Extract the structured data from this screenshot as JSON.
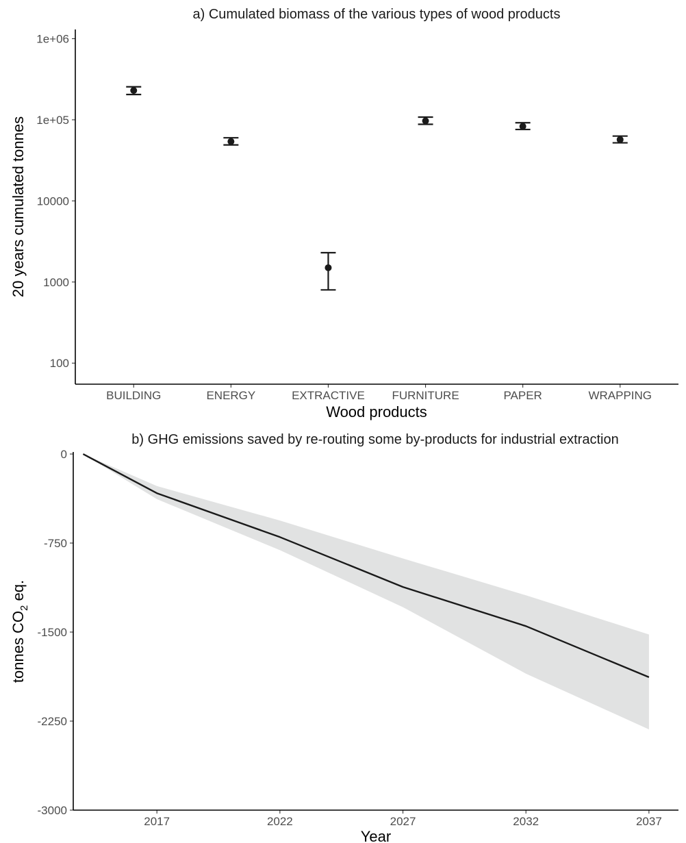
{
  "chart_data": [
    {
      "type": "scatter",
      "title": "a) Cumulated biomass of the various types of wood products",
      "xlabel": "Wood products",
      "ylabel": "20 years cumulated tonnes",
      "yscale": "log10",
      "ylim": [
        55,
        1300000
      ],
      "yticks": [
        {
          "value": 100,
          "label": "100"
        },
        {
          "value": 1000,
          "label": "1000"
        },
        {
          "value": 10000,
          "label": "10000"
        },
        {
          "value": 100000,
          "label": "1e+05"
        },
        {
          "value": 1000000,
          "label": "1e+06"
        }
      ],
      "categories": [
        "BUILDING",
        "ENERGY",
        "EXTRACTIVE",
        "FURNITURE",
        "PAPER",
        "WRAPPING"
      ],
      "points": [
        {
          "category": "BUILDING",
          "value": 230000,
          "lower": 205000,
          "upper": 255000
        },
        {
          "category": "ENERGY",
          "value": 54000,
          "lower": 49000,
          "upper": 60000
        },
        {
          "category": "EXTRACTIVE",
          "value": 1500,
          "lower": 800,
          "upper": 2300
        },
        {
          "category": "FURNITURE",
          "value": 97000,
          "lower": 88000,
          "upper": 108000
        },
        {
          "category": "PAPER",
          "value": 83000,
          "lower": 76000,
          "upper": 92000
        },
        {
          "category": "WRAPPING",
          "value": 57000,
          "lower": 52000,
          "upper": 63000
        }
      ],
      "colors": {
        "marker": "#1a1a1a"
      }
    },
    {
      "type": "line",
      "title": "b) GHG emissions saved by re-routing some by-products for industrial extraction",
      "xlabel": "Year",
      "ylabel_main": "tonnes CO",
      "ylabel_sub": "2",
      "ylabel_end": " eq.",
      "xlim": [
        2013.6,
        2038.2
      ],
      "ylim": [
        -3000,
        0
      ],
      "xticks": [
        {
          "value": 2017,
          "label": "2017"
        },
        {
          "value": 2022,
          "label": "2022"
        },
        {
          "value": 2027,
          "label": "2027"
        },
        {
          "value": 2032,
          "label": "2032"
        },
        {
          "value": 2037,
          "label": "2037"
        }
      ],
      "yticks": [
        {
          "value": 0,
          "label": "0"
        },
        {
          "value": -750,
          "label": "-750"
        },
        {
          "value": -1500,
          "label": "-1500"
        },
        {
          "value": -2250,
          "label": "-2250"
        },
        {
          "value": -3000,
          "label": "-3000"
        }
      ],
      "series": [
        {
          "x": [
            2014,
            2017,
            2022,
            2027,
            2032,
            2037
          ],
          "y": [
            0,
            -330,
            -700,
            -1120,
            -1450,
            -1880
          ],
          "lower": [
            0,
            -380,
            -810,
            -1290,
            -1850,
            -2320
          ],
          "upper": [
            0,
            -270,
            -560,
            -880,
            -1190,
            -1520
          ]
        }
      ],
      "colors": {
        "line": "#1a1a1a",
        "ribbon": "#e1e2e2"
      }
    }
  ]
}
